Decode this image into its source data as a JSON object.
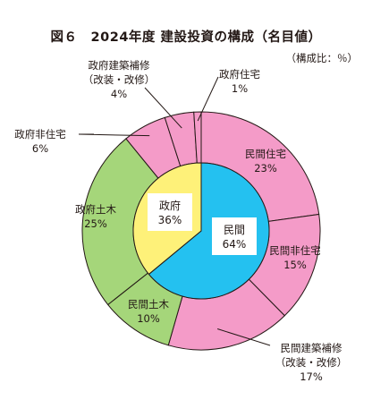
{
  "title": "図６　2024年度 建設投資の構成（名目値）",
  "subtitle": "（構成比：％）",
  "colors": {
    "government_inner": "#fef179",
    "private_inner": "#24c1f0",
    "building": "#f49bc8",
    "civil": "#a5d67a",
    "stroke": "#231815",
    "box": "#ffffff"
  },
  "chart_data": [
    {
      "type": "pie",
      "ring": "inner",
      "slices": [
        {
          "key": "private",
          "label": "民間",
          "value": 64,
          "value_text": "64%",
          "category": "private_inner"
        },
        {
          "key": "gov",
          "label": "政府",
          "value": 36,
          "value_text": "36%",
          "category": "government_inner"
        }
      ]
    },
    {
      "type": "pie",
      "ring": "outer",
      "slices": [
        {
          "key": "priv-housing",
          "label": "民間住宅",
          "value": 23,
          "value_text": "23%",
          "category": "building"
        },
        {
          "key": "priv-nonhousing",
          "label": "民間非住宅",
          "value": 15,
          "value_text": "15%",
          "category": "building"
        },
        {
          "key": "priv-repair",
          "label": "民間建築補修",
          "label2": "（改装・改修）",
          "value": 17,
          "value_text": "17%",
          "category": "building"
        },
        {
          "key": "priv-civil",
          "label": "民間土木",
          "value": 10,
          "value_text": "10%",
          "category": "civil"
        },
        {
          "key": "gov-civil",
          "label": "政府土木",
          "value": 25,
          "value_text": "25%",
          "category": "civil"
        },
        {
          "key": "gov-nonhousing",
          "label": "政府非住宅",
          "value": 6,
          "value_text": "6%",
          "category": "building"
        },
        {
          "key": "gov-repair",
          "label": "政府建築補修",
          "label2": "（改装・改修）",
          "value": 4,
          "value_text": "4%",
          "category": "building"
        },
        {
          "key": "gov-housing",
          "label": "政府住宅",
          "value": 1,
          "value_text": "1%",
          "category": "building"
        }
      ]
    }
  ]
}
